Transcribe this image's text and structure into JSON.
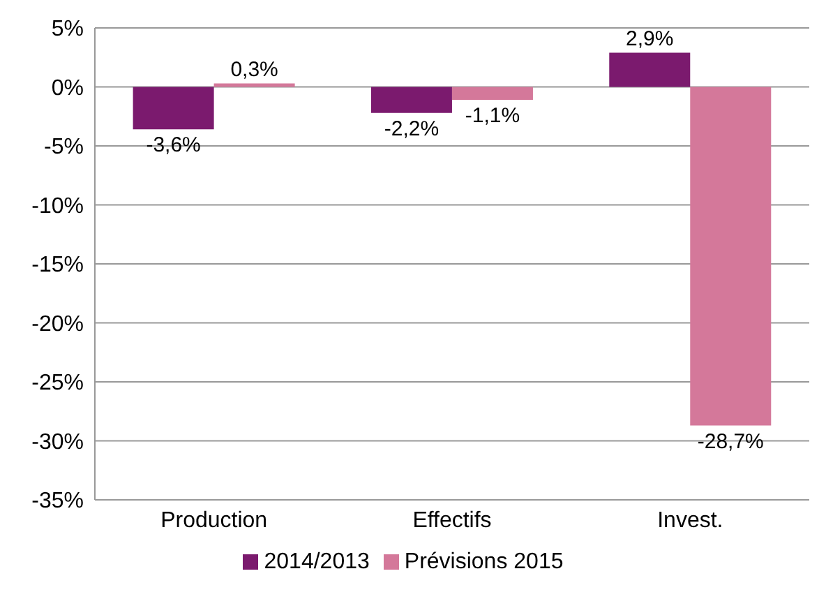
{
  "chart_data": {
    "type": "bar",
    "categories": [
      "Production",
      "Effectifs",
      "Invest."
    ],
    "series": [
      {
        "name": "2014/2013",
        "color": "#7b1a6e",
        "values": [
          -3.6,
          -2.2,
          2.9
        ],
        "value_labels": [
          "-3,6%",
          "-2,2%",
          "2,9%"
        ]
      },
      {
        "name": "Prévisions 2015",
        "color": "#d4789a",
        "values": [
          0.3,
          -1.1,
          -28.7
        ],
        "value_labels": [
          "0,3%",
          "-1,1%",
          "-28,7%"
        ]
      }
    ],
    "ylim": [
      -35,
      5
    ],
    "yticks": [
      {
        "value": 5,
        "label": "5%"
      },
      {
        "value": 0,
        "label": "0%"
      },
      {
        "value": -5,
        "label": "-5%"
      },
      {
        "value": -10,
        "label": "-10%"
      },
      {
        "value": -15,
        "label": "-15%"
      },
      {
        "value": -20,
        "label": "-20%"
      },
      {
        "value": -25,
        "label": "-25%"
      },
      {
        "value": -30,
        "label": "-30%"
      },
      {
        "value": -35,
        "label": "-35%"
      }
    ],
    "grid": "y",
    "legend": "bottom"
  }
}
